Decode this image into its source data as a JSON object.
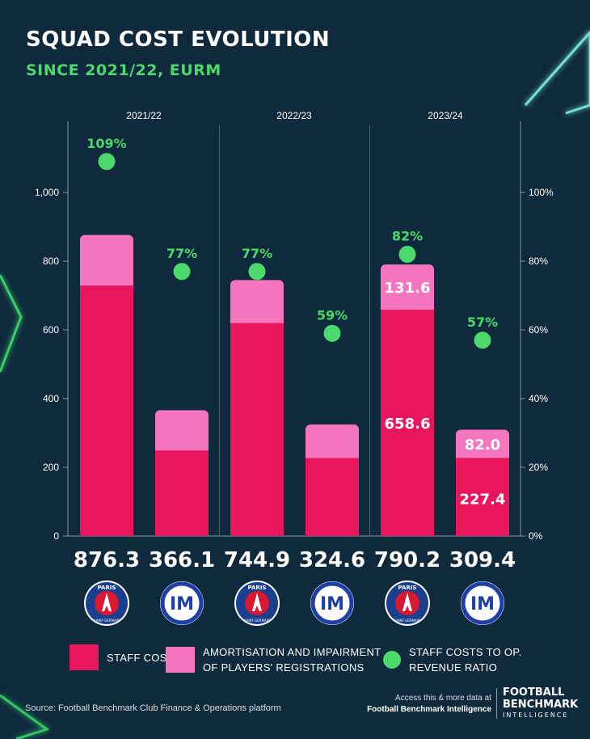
{
  "header": {
    "title": "SQUAD COST EVOLUTION",
    "subtitle": "SINCE 2021/22, EURM"
  },
  "colors": {
    "background": "#0f2a3c",
    "staff_costs": "#e8175d",
    "amortisation": "#f575bf",
    "ratio_dot": "#4cd96b",
    "accent_green": "#4cd96b",
    "neon_glow": "#7ef5e6"
  },
  "chart_data": {
    "type": "bar",
    "stacked": true,
    "seasons": [
      "2021/22",
      "2022/23",
      "2023/24"
    ],
    "clubs": [
      "psg",
      "inter",
      "psg",
      "inter",
      "psg",
      "inter"
    ],
    "club_icons": [
      "psg-crest-icon",
      "inter-crest-icon"
    ],
    "club_crest_text": {
      "psg_top": "PARIS",
      "psg_bottom": "SAINT-GERMAIN",
      "inter_monogram": "IM"
    },
    "bar_season_index": [
      0,
      0,
      1,
      1,
      2,
      2
    ],
    "totals": [
      "876.3",
      "366.1",
      "744.9",
      "324.6",
      "790.2",
      "309.4"
    ],
    "series": [
      {
        "name": "STAFF COSTS",
        "values": [
          729,
          249,
          620,
          227,
          658.6,
          227.4
        ]
      },
      {
        "name": "AMORTISATION AND IMPAIRMENT OF PLAYERS' REGISTRATIONS",
        "values": [
          147.3,
          117.1,
          124.9,
          97.6,
          131.6,
          82.0
        ]
      }
    ],
    "ratio": {
      "name": "STAFF COSTS TO OP. REVENUE RATIO",
      "values": [
        109,
        77,
        77,
        59,
        82,
        57
      ],
      "labels": [
        "109%",
        "77%",
        "77%",
        "59%",
        "82%",
        "57%"
      ]
    },
    "value_labels": [
      {
        "bar": 4,
        "series": 0,
        "text": "658.6"
      },
      {
        "bar": 4,
        "series": 1,
        "text": "131.6"
      },
      {
        "bar": 5,
        "series": 0,
        "text": "227.4"
      },
      {
        "bar": 5,
        "series": 1,
        "text": "82.0"
      }
    ],
    "y_left": {
      "min": 0,
      "max": 1000,
      "ticks": [
        0,
        200,
        400,
        600,
        800,
        1000
      ],
      "tick_labels": [
        "0",
        "200",
        "400",
        "600",
        "800",
        "1,000"
      ]
    },
    "y_right": {
      "min": 0,
      "max": 100,
      "ticks": [
        0,
        20,
        40,
        60,
        80,
        100
      ],
      "tick_labels": [
        "0%",
        "20%",
        "40%",
        "60%",
        "80%",
        "100%"
      ]
    },
    "grid": false,
    "legend_position": "bottom"
  },
  "legend": {
    "staff_costs": "STAFF COSTS",
    "amortisation_line1": "AMORTISATION AND IMPAIRMENT",
    "amortisation_line2": "OF PLAYERS' REGISTRATIONS",
    "ratio_line1": "STAFF COSTS TO OP.",
    "ratio_line2": "REVENUE RATIO"
  },
  "footer": {
    "source": "Source: Football Benchmark Club Finance & Operations platform",
    "access_line1": "Access this & more data at",
    "access_line2": "Football Benchmark Intelligence",
    "brand_line1": "FOOTBALL",
    "brand_line2": "BENCHMARK",
    "brand_line3": "INTELLIGENCE"
  }
}
